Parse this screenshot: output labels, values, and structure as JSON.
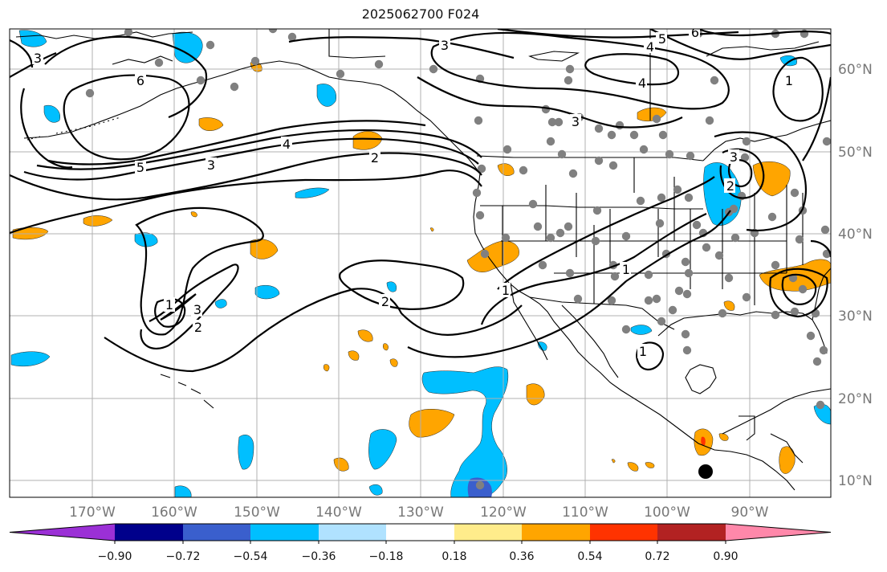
{
  "title": "2025062700 F024",
  "map": {
    "lat_labels": [
      "60°N",
      "50°N",
      "40°N",
      "30°N",
      "20°N",
      "10°N"
    ],
    "lon_labels": [
      "170°W",
      "160°W",
      "150°W",
      "140°W",
      "130°W",
      "120°W",
      "110°W",
      "100°W",
      "90°W"
    ],
    "contour_labels": [
      "3",
      "5",
      "4",
      "6",
      "4",
      "3",
      "3",
      "2",
      "5",
      "4",
      "3",
      "6",
      "1",
      "3",
      "2",
      "2",
      "1",
      "3",
      "2",
      "1",
      "1",
      "1"
    ]
  },
  "colorbar": {
    "tick_labels": [
      "−0.90",
      "−0.72",
      "−0.54",
      "−0.36",
      "−0.18",
      "0.18",
      "0.36",
      "0.54",
      "0.72",
      "0.90"
    ],
    "colors": [
      "#9b30d6",
      "#00008b",
      "#3a5fcd",
      "#00bfff",
      "#b0e2ff",
      "#ffffff",
      "#ffec8b",
      "#ffa500",
      "#ff3300",
      "#b22222",
      "#ff88aa"
    ]
  },
  "colors": {
    "orange": "#ffa500",
    "blue": "#00bfff",
    "station": "#808080"
  }
}
